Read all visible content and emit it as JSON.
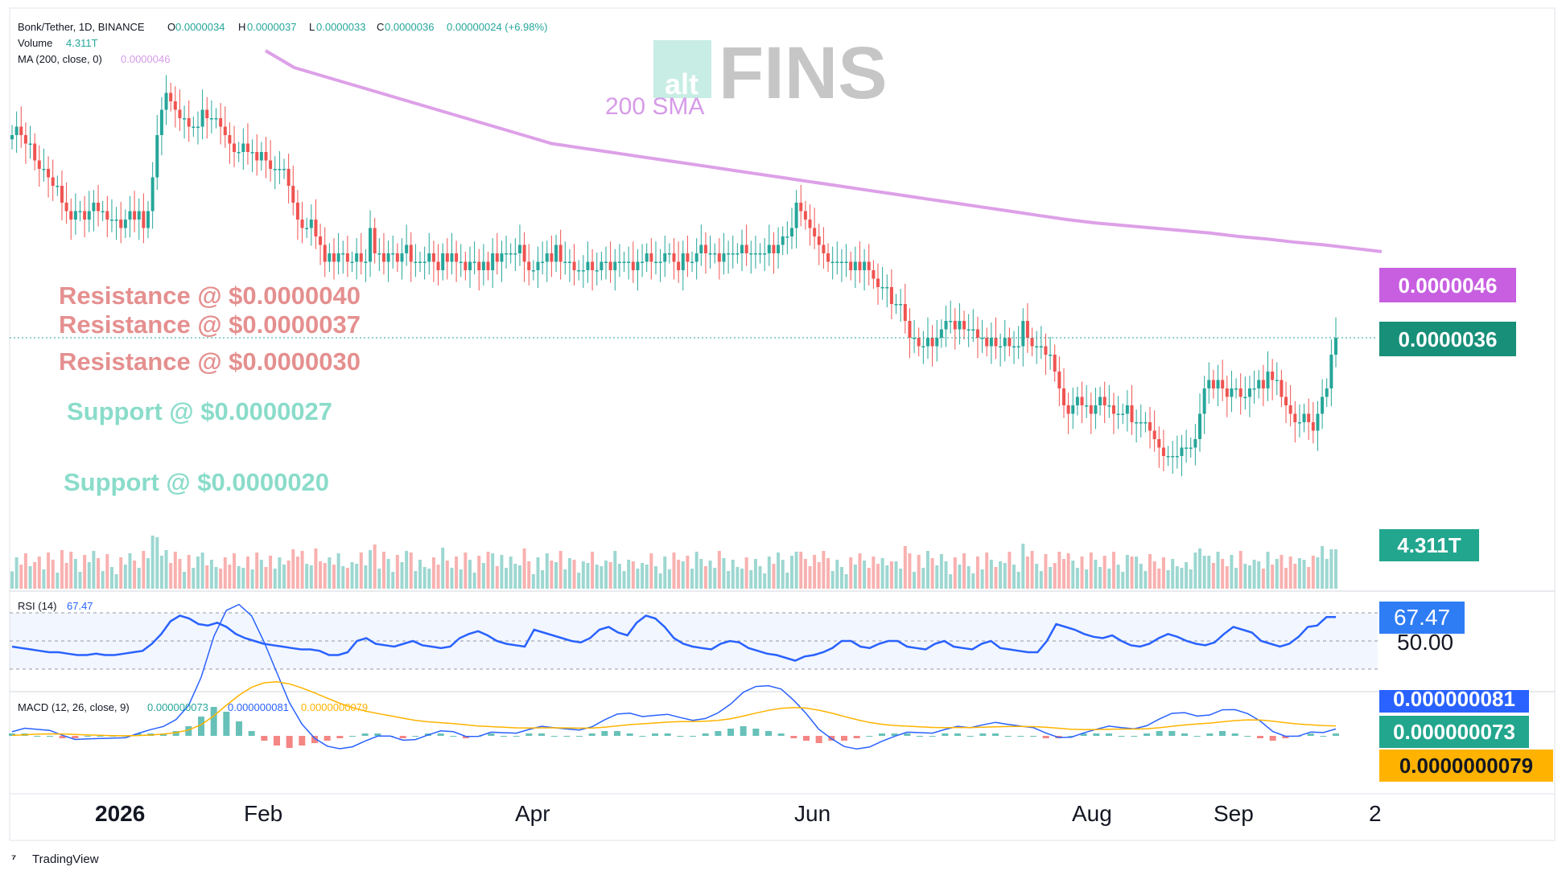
{
  "header": {
    "symbol": "Bonk/Tether, 1D, BINANCE",
    "o_label": "O",
    "o_value": "0.0000034",
    "h_label": "H",
    "h_value": "0.0000037",
    "l_label": "L",
    "l_value": "0.0000033",
    "c_label": "C",
    "c_value": "0.0000036",
    "change": "0.00000024 (+6.98%)",
    "volume_label": "Volume",
    "volume_value": "4.311T",
    "ma_label": "MA (200, close, 0)",
    "ma_value": "0.0000046"
  },
  "watermark": {
    "alt": "alt",
    "fins": "FINS"
  },
  "sma_label": "200 SMA",
  "levels": {
    "resistance": [
      {
        "label": "Resistance @ $0.0000040",
        "value": 4e-06
      },
      {
        "label": "Resistance @ $0.0000037",
        "value": 3.7e-06
      },
      {
        "label": "Resistance @ $0.0000030",
        "value": 3e-06
      }
    ],
    "support": [
      {
        "label": "Support @ $0.0000027",
        "value": 2.7e-06
      },
      {
        "label": "Support @ $0.0000020",
        "value": 2e-06
      }
    ]
  },
  "price_tags": {
    "ma": "0.0000046",
    "last": "0.0000036",
    "volume": "4.311T"
  },
  "rsi": {
    "label": "RSI (14)",
    "value": "67.47",
    "mid_tag": "50.00"
  },
  "macd": {
    "label": "MACD (12, 26, close, 9)",
    "hist_value": "0.000000073",
    "macd_value": "0.000000081",
    "signal_value": "0.0000000079",
    "tags": {
      "macd": "0.000000081",
      "hist": "0.000000073",
      "signal": "0.0000000079"
    }
  },
  "x_axis": {
    "ticks": [
      "2026",
      "Feb",
      "Apr",
      "Jun",
      "Aug",
      "Sep",
      "2"
    ]
  },
  "brand": "TradingView",
  "colors": {
    "up": "#26a69a",
    "down": "#ef5350",
    "sma": "#dda0e8",
    "resistance": "#e07a7a",
    "support": "#7fd6c4",
    "rsi": "#2962ff",
    "macd": "#2962ff",
    "signal": "#ffb300"
  },
  "chart_data": {
    "type": "candlestick",
    "ylim": [
      1.6e-06,
      6.6e-06
    ],
    "close": [
      6.0,
      6.1,
      6.0,
      5.9,
      5.9,
      5.7,
      5.6,
      5.6,
      5.5,
      5.4,
      5.4,
      5.2,
      5.1,
      5.0,
      5.1,
      5.1,
      5.0,
      5.1,
      5.2,
      5.1,
      5.1,
      5.0,
      5.0,
      5.0,
      4.9,
      5.0,
      5.1,
      5.0,
      5.1,
      4.9,
      5.1,
      5.5,
      6.0,
      6.3,
      6.5,
      6.4,
      6.3,
      6.2,
      6.2,
      6.1,
      6.1,
      6.1,
      6.3,
      6.2,
      6.2,
      6.2,
      6.1,
      6.0,
      5.9,
      5.8,
      5.8,
      5.9,
      5.8,
      5.8,
      5.7,
      5.8,
      5.7,
      5.6,
      5.6,
      5.6,
      5.6,
      5.4,
      5.2,
      5.0,
      4.9,
      4.9,
      5.0,
      4.8,
      4.7,
      4.5,
      4.6,
      4.5,
      4.6,
      4.6,
      4.5,
      4.5,
      4.6,
      4.5,
      4.5,
      4.9,
      4.6,
      4.6,
      4.5,
      4.6,
      4.6,
      4.5,
      4.6,
      4.7,
      4.5,
      4.5,
      4.5,
      4.5,
      4.6,
      4.5,
      4.4,
      4.6,
      4.5,
      4.6,
      4.5,
      4.5,
      4.4,
      4.5,
      4.5,
      4.4,
      4.5,
      4.4,
      4.6,
      4.5,
      4.6,
      4.6,
      4.6,
      4.6,
      4.7,
      4.5,
      4.4,
      4.4,
      4.5,
      4.5,
      4.6,
      4.5,
      4.7,
      4.5,
      4.5,
      4.5,
      4.4,
      4.4,
      4.4,
      4.5,
      4.4,
      4.4,
      4.5,
      4.5,
      4.4,
      4.5,
      4.5,
      4.5,
      4.5,
      4.4,
      4.5,
      4.5,
      4.6,
      4.5,
      4.5,
      4.5,
      4.6,
      4.6,
      4.5,
      4.4,
      4.6,
      4.5,
      4.5,
      4.6,
      4.7,
      4.6,
      4.6,
      4.6,
      4.5,
      4.6,
      4.6,
      4.6,
      4.6,
      4.7,
      4.6,
      4.6,
      4.6,
      4.6,
      4.6,
      4.7,
      4.6,
      4.7,
      4.8,
      4.8,
      4.9,
      5.2,
      5.1,
      5.0,
      4.9,
      4.8,
      4.7,
      4.6,
      4.5,
      4.5,
      4.5,
      4.5,
      4.5,
      4.4,
      4.5,
      4.4,
      4.5,
      4.4,
      4.3,
      4.2,
      4.2,
      4.2,
      4.0,
      4.0,
      4.0,
      3.8,
      3.6,
      3.6,
      3.5,
      3.5,
      3.6,
      3.5,
      3.6,
      3.7,
      3.8,
      3.8,
      3.7,
      3.8,
      3.7,
      3.7,
      3.7,
      3.6,
      3.6,
      3.5,
      3.6,
      3.5,
      3.5,
      3.6,
      3.5,
      3.5,
      3.5,
      3.8,
      3.6,
      3.5,
      3.5,
      3.5,
      3.4,
      3.4,
      3.2,
      3.0,
      2.8,
      2.7,
      2.8,
      2.9,
      2.8,
      2.8,
      2.7,
      2.8,
      2.9,
      2.8,
      2.8,
      2.7,
      2.7,
      2.7,
      2.8,
      2.6,
      2.6,
      2.6,
      2.6,
      2.5,
      2.4,
      2.3,
      2.2,
      2.2,
      2.2,
      2.2,
      2.3,
      2.3,
      2.3,
      2.4,
      2.7,
      3.0,
      3.1,
      3.0,
      3.1,
      3.0,
      2.9,
      3.0,
      3.0,
      2.9,
      2.9,
      3.0,
      3.0,
      3.1,
      3.0,
      3.2,
      3.1,
      3.1,
      2.9,
      2.8,
      2.7,
      2.6,
      2.6,
      2.7,
      2.6,
      2.5,
      2.7,
      2.9,
      3.0,
      3.4,
      3.6
    ],
    "ma200": [
      7.0,
      6.8,
      6.7,
      6.6,
      6.5,
      6.4,
      6.3,
      6.2,
      6.1,
      6.0,
      5.9,
      5.85,
      5.8,
      5.75,
      5.7,
      5.65,
      5.6,
      5.55,
      5.5,
      5.45,
      5.4,
      5.35,
      5.3,
      5.25,
      5.2,
      5.15,
      5.1,
      5.05,
      5.0,
      4.96,
      4.93,
      4.9,
      4.87,
      4.84,
      4.8,
      4.77,
      4.73,
      4.7,
      4.66,
      4.62
    ],
    "rsi": [
      46,
      45,
      44,
      43,
      42,
      42,
      41,
      40,
      40,
      41,
      40,
      40,
      41,
      42,
      43,
      48,
      55,
      64,
      68,
      66,
      62,
      61,
      63,
      60,
      55,
      52,
      50,
      48,
      47,
      46,
      45,
      44,
      44,
      43,
      40,
      40,
      42,
      50,
      52,
      48,
      47,
      46,
      48,
      50,
      47,
      46,
      45,
      46,
      52,
      55,
      57,
      54,
      50,
      48,
      47,
      46,
      58,
      56,
      54,
      52,
      50,
      49,
      52,
      58,
      60,
      56,
      54,
      63,
      68,
      66,
      60,
      52,
      48,
      46,
      45,
      44,
      48,
      50,
      49,
      45,
      43,
      41,
      40,
      38,
      36,
      39,
      40,
      42,
      45,
      50,
      50,
      46,
      45,
      48,
      50,
      50,
      46,
      45,
      44,
      48,
      50,
      46,
      45,
      44,
      48,
      50,
      45,
      44,
      43,
      42,
      42,
      50,
      62,
      60,
      58,
      55,
      53,
      52,
      54,
      50,
      47,
      46,
      48,
      52,
      55,
      53,
      50,
      48,
      47,
      49,
      55,
      60,
      58,
      56,
      50,
      48,
      46,
      48,
      53,
      60,
      61,
      67,
      67
    ],
    "macd_hist": [
      1,
      1,
      0,
      0,
      -1,
      -1,
      0,
      0,
      0,
      0,
      1,
      1,
      1,
      2,
      4,
      8,
      12,
      10,
      6,
      2,
      -2,
      -4,
      -5,
      -4,
      -3,
      -2,
      -1,
      0,
      1,
      1,
      0,
      -1,
      0,
      1,
      1,
      0,
      -1,
      0,
      1,
      0,
      0,
      1,
      1,
      0,
      0,
      0,
      1,
      2,
      2,
      1,
      0,
      1,
      1,
      0,
      0,
      1,
      2,
      3,
      4,
      3,
      2,
      1,
      -1,
      -2,
      -3,
      -2,
      -2,
      -1,
      0,
      1,
      1,
      1,
      0,
      0,
      1,
      1,
      0,
      1,
      1,
      0,
      0,
      0,
      -1,
      -1,
      0,
      1,
      1,
      1,
      0,
      0,
      1,
      2,
      2,
      1,
      0,
      1,
      2,
      1,
      0,
      -1,
      -2,
      -1,
      0,
      1,
      0,
      1
    ]
  }
}
